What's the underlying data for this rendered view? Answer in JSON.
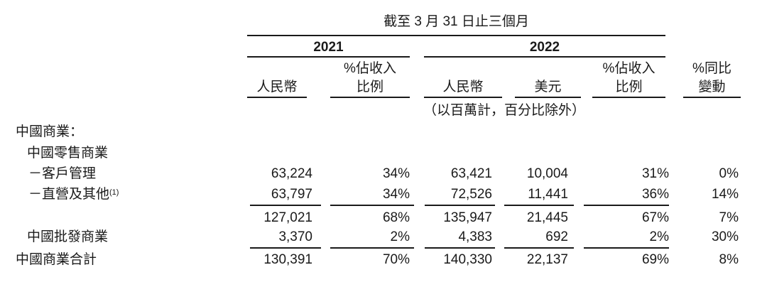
{
  "header": {
    "period": "截至 3 月 31 日止三個月",
    "years": [
      "2021",
      "2022"
    ],
    "columns": [
      "人民幣",
      "%佔收入\n比例",
      "人民幣",
      "美元",
      "%佔收入\n比例",
      "%同比\n變動"
    ],
    "col_lines": [
      [
        "",
        "人民幣"
      ],
      [
        "%佔收入",
        "比例"
      ],
      [
        "",
        "人民幣"
      ],
      [
        "",
        "美元"
      ],
      [
        "%佔收入",
        "比例"
      ],
      [
        "%同比",
        "變動"
      ]
    ],
    "unit_note": "（以百萬計，百分比除外）"
  },
  "rows": [
    {
      "label": "中國商業：",
      "values": [
        "",
        "",
        "",
        "",
        "",
        ""
      ]
    },
    {
      "label": "中國零售商業",
      "values": [
        "",
        "",
        "",
        "",
        "",
        ""
      ]
    },
    {
      "label": "－客戶管理",
      "values": [
        "63,224",
        "34%",
        "63,421",
        "10,004",
        "31%",
        "0%"
      ]
    },
    {
      "label": "－直營及其他",
      "footnote": "(1)",
      "values": [
        "63,797",
        "34%",
        "72,526",
        "11,441",
        "36%",
        "14%"
      ]
    },
    {
      "label": "",
      "values": [
        "127,021",
        "68%",
        "135,947",
        "21,445",
        "67%",
        "7%"
      ]
    },
    {
      "label": "中國批發商業",
      "values": [
        "3,370",
        "2%",
        "4,383",
        "692",
        "2%",
        "30%"
      ]
    },
    {
      "label": "中國商業合計",
      "values": [
        "130,391",
        "70%",
        "140,330",
        "22,137",
        "69%",
        "8%"
      ]
    }
  ]
}
